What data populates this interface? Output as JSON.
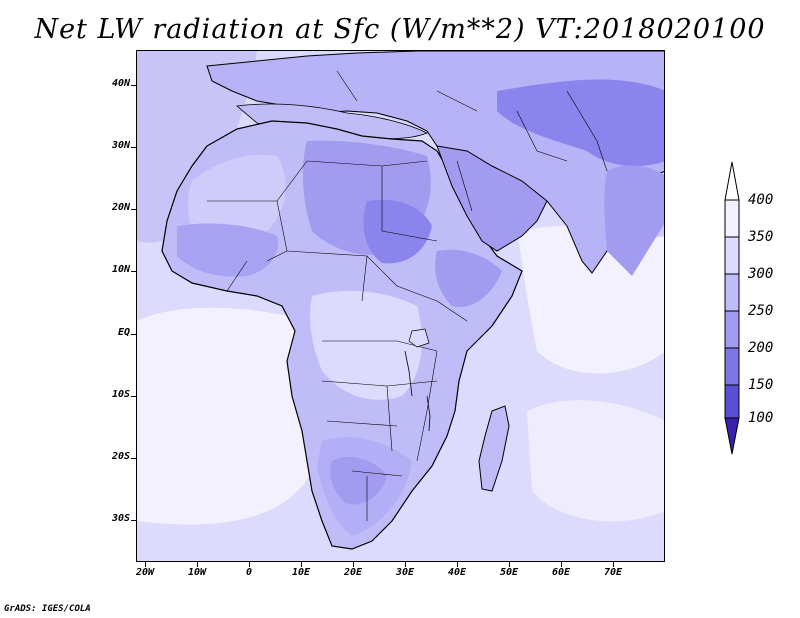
{
  "title": "Net LW radiation at Sfc (W/m**2) VT:2018020100",
  "credit": "GrADS: IGES/COLA",
  "map": {
    "lat_labels": [
      "40N",
      "30N",
      "20N",
      "10N",
      "EQ",
      "10S",
      "20S",
      "30S"
    ],
    "lon_labels": [
      "20W",
      "10W",
      "0",
      "10E",
      "20E",
      "30E",
      "40E",
      "50E",
      "60E",
      "70E"
    ]
  },
  "legend": {
    "labels": [
      "400",
      "350",
      "300",
      "250",
      "200",
      "150",
      "100"
    ],
    "colors": [
      "#f3f1fe",
      "#dcdafd",
      "#c0bcf7",
      "#a39bf0",
      "#7e76e6",
      "#5a4ed6",
      "#3b20b0"
    ]
  },
  "colors": {
    "ocean": "#dcdafd",
    "ocean_light": "#f3f1fe",
    "land_300": "#c0bcf7",
    "land_250": "#a39bf0",
    "land_200": "#8b84ec",
    "sahara_light": "#d0ccfa",
    "border": "#000000"
  }
}
